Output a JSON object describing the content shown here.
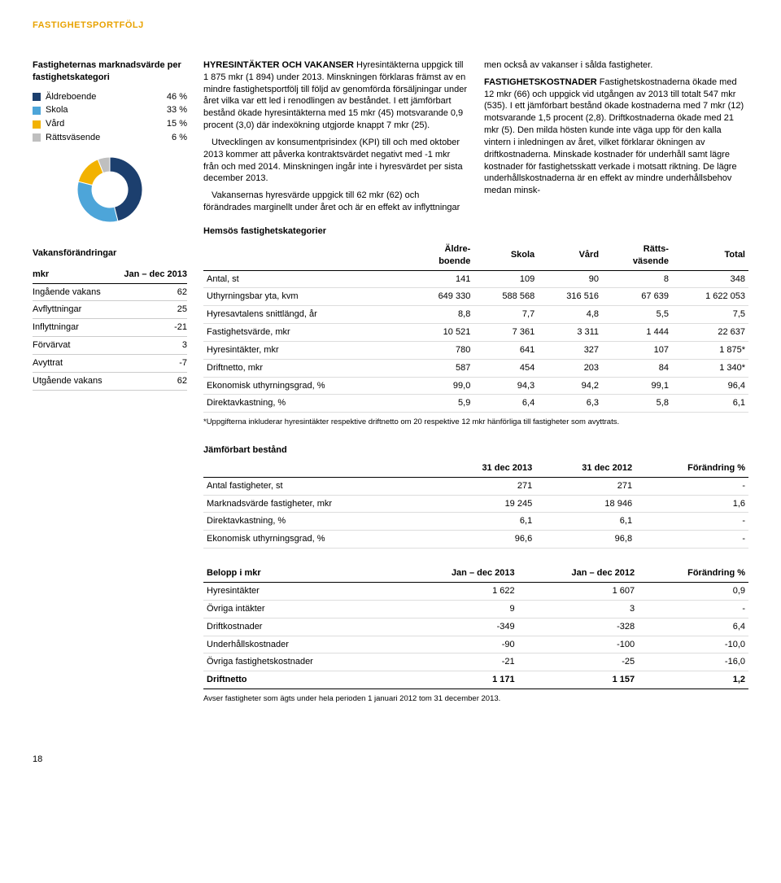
{
  "section_title": "FASTIGHETSPORTFÖLJ",
  "pie": {
    "title": "Fastigheternas marknadsvärde per fastighetskategori",
    "items": [
      {
        "label": "Äldreboende",
        "pct": "46 %",
        "color": "#1c3f6e"
      },
      {
        "label": "Skola",
        "pct": "33 %",
        "color": "#4da5d9"
      },
      {
        "label": "Vård",
        "pct": "15 %",
        "color": "#f2b200"
      },
      {
        "label": "Rättsväsende",
        "pct": "6 %",
        "color": "#bfbfbf"
      }
    ],
    "values": [
      46,
      33,
      15,
      6
    ],
    "inner_r": 22,
    "outer_r": 40,
    "bg": "#ffffff"
  },
  "vakans": {
    "title": "Vakansförändringar",
    "col_left": "mkr",
    "col_right": "Jan – dec 2013",
    "rows": [
      [
        "Ingående vakans",
        "62"
      ],
      [
        "Avflyttningar",
        "25"
      ],
      [
        "Inflyttningar",
        "-21"
      ],
      [
        "Förvärvat",
        "3"
      ],
      [
        "Avyttrat",
        "-7"
      ],
      [
        "Utgående vakans",
        "62"
      ]
    ]
  },
  "body": {
    "h1": "HYRESINTÄKTER OCH VAKANSER",
    "p1": "Hyresintäkterna uppgick till 1 875 mkr (1 894) under 2013. Minskningen förklaras främst av en mindre fastighetsportfölj till följd av genomförda försäljningar under året vilka var ett led i renodlingen av beståndet. I ett jämförbart bestånd ökade hyresintäkterna med 15 mkr (45) motsvarande 0,9 procent (3,0) där indexökning utgjorde knappt 7 mkr (25).",
    "p1b": "Utvecklingen av konsumentprisindex (KPI) till och med oktober 2013 kommer att påverka kontraktsvärdet negativt med -1 mkr från och med 2014. Minskningen ingår inte i hyresvärdet per sista december 2013.",
    "p1c": "Vakansernas hyresvärde uppgick till 62 mkr (62) och förändrades marginellt under året och är en effekt av inflyttningar men också av vakanser i sålda fastigheter.",
    "h2": "FASTIGHETSKOSTNADER",
    "p2": "Fastighetskostnaderna ökade med 12 mkr (66) och uppgick vid utgången av 2013 till totalt 547 mkr (535). I ett jämförbart bestånd ökade kostnaderna med 7 mkr (12) motsvarande 1,5 procent (2,8). Driftkostnaderna ökade med 21 mkr (5). Den milda hösten kunde inte väga upp för den kalla vintern i inledningen av året, vilket förklarar ökningen av driftkostnaderna. Minskade kostnader för underhåll samt lägre kostnader för fastighetsskatt verkade i motsatt riktning. De lägre underhållskostnaderna är en effekt av mindre underhållsbehov medan minsk-"
  },
  "table1": {
    "title": "Hemsös fastighetskategorier",
    "columns": [
      "",
      "Äldre-\nboende",
      "Skola",
      "Vård",
      "Rätts-\nväsende",
      "Total"
    ],
    "rows": [
      [
        "Antal, st",
        "141",
        "109",
        "90",
        "8",
        "348"
      ],
      [
        "Uthyrningsbar yta, kvm",
        "649 330",
        "588 568",
        "316 516",
        "67 639",
        "1 622 053"
      ],
      [
        "Hyresavtalens snittlängd, år",
        "8,8",
        "7,7",
        "4,8",
        "5,5",
        "7,5"
      ],
      [
        "Fastighetsvärde, mkr",
        "10 521",
        "7 361",
        "3 311",
        "1 444",
        "22 637"
      ],
      [
        "Hyresintäkter, mkr",
        "780",
        "641",
        "327",
        "107",
        "1 875*"
      ],
      [
        "Driftnetto, mkr",
        "587",
        "454",
        "203",
        "84",
        "1 340*"
      ],
      [
        "Ekonomisk uthyrningsgrad, %",
        "99,0",
        "94,3",
        "94,2",
        "99,1",
        "96,4"
      ],
      [
        "Direktavkastning, %",
        "5,9",
        "6,4",
        "6,3",
        "5,8",
        "6,1"
      ]
    ],
    "footnote": "*Uppgifterna inkluderar hyresintäkter respektive driftnetto om 20 respektive 12 mkr hänförliga till fastigheter som avyttrats."
  },
  "table2": {
    "title": "Jämförbart bestånd",
    "columns": [
      "",
      "31 dec 2013",
      "31 dec 2012",
      "Förändring %"
    ],
    "rows": [
      [
        "Antal fastigheter, st",
        "271",
        "271",
        "-"
      ],
      [
        "Marknadsvärde fastigheter, mkr",
        "19 245",
        "18 946",
        "1,6"
      ],
      [
        "Direktavkastning, %",
        "6,1",
        "6,1",
        "-"
      ],
      [
        "Ekonomisk uthyrningsgrad, %",
        "96,6",
        "96,8",
        "-"
      ]
    ]
  },
  "table3": {
    "columns": [
      "Belopp i mkr",
      "Jan – dec 2013",
      "Jan – dec 2012",
      "Förändring %"
    ],
    "rows": [
      [
        "Hyresintäkter",
        "1 622",
        "1 607",
        "0,9"
      ],
      [
        "Övriga intäkter",
        "9",
        "3",
        "-"
      ],
      [
        "Driftkostnader",
        "-349",
        "-328",
        "6,4"
      ],
      [
        "Underhållskostnader",
        "-90",
        "-100",
        "-10,0"
      ],
      [
        "Övriga fastighetskostnader",
        "-21",
        "-25",
        "-16,0"
      ]
    ],
    "bold_row": [
      "Driftnetto",
      "1 171",
      "1 157",
      "1,2"
    ],
    "footnote": "Avser fastigheter som ägts under hela perioden 1 januari 2012 tom 31 december 2013."
  },
  "page_num": "18"
}
